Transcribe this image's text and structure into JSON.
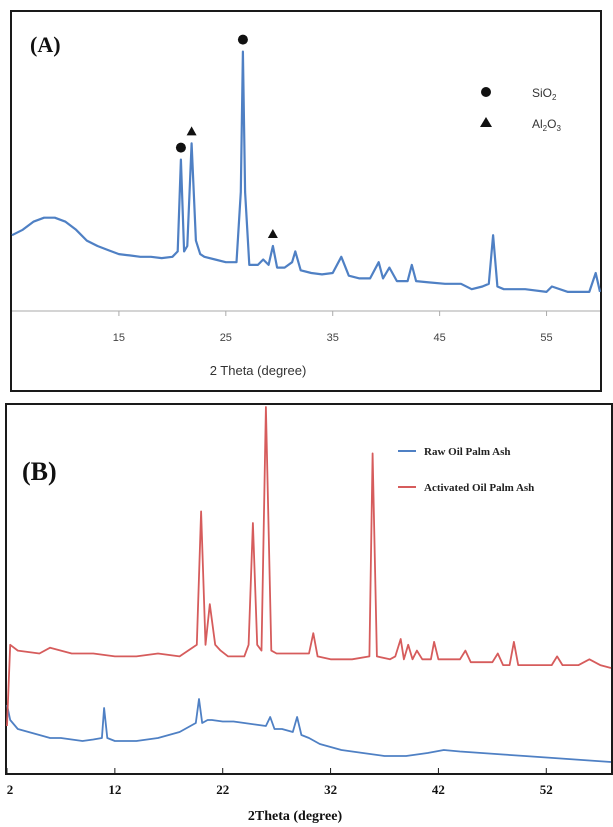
{
  "panels": [
    {
      "panel_label": "(A)",
      "xlabel": "2 Theta (degree)",
      "ylabel": "",
      "legend": [
        {
          "marker": "circle",
          "text": "SiO",
          "sub": "2",
          "text2": "",
          "sub2": ""
        },
        {
          "marker": "triangle",
          "text": "Al",
          "sub": "2",
          "text2": "O",
          "sub2": "3"
        }
      ],
      "peak_markers": [
        {
          "type": "circle",
          "x": 20.8
        },
        {
          "type": "triangle",
          "x": 21.8
        },
        {
          "type": "circle",
          "x": 26.6
        },
        {
          "type": "triangle",
          "x": 29.4
        }
      ]
    },
    {
      "panel_label": "(B)",
      "xlabel": "2Theta (degree)",
      "ylabel": "",
      "legend": [
        {
          "text": "Raw Oil Palm Ash"
        },
        {
          "text": "Activated Oil Palm Ash"
        }
      ]
    }
  ],
  "colors": {
    "blue": "#4f80c4",
    "red": "#d65c5c",
    "frame": "#1a1a1a",
    "axis_text": "#444444"
  },
  "chart_data": [
    {
      "type": "line",
      "title": "",
      "xlabel": "2 Theta (degree)",
      "ylabel": "",
      "xlim": [
        5,
        60
      ],
      "ylim": [
        0,
        100
      ],
      "xticks": [
        15,
        25,
        35,
        45,
        55
      ],
      "grid": false,
      "legend_position": "top-right",
      "series": [
        {
          "name": "",
          "x": [
            5,
            6,
            7,
            8,
            9,
            10,
            11,
            12,
            13,
            14,
            15,
            16,
            17,
            18,
            19,
            20,
            20.5,
            20.8,
            21.1,
            21.4,
            21.8,
            22.2,
            22.6,
            23,
            24,
            25,
            26,
            26.4,
            26.6,
            26.8,
            27.2,
            28,
            28.5,
            29,
            29.4,
            29.8,
            30.5,
            31.2,
            31.5,
            32,
            33,
            34,
            35,
            35.8,
            36.5,
            37.5,
            38.5,
            39.3,
            39.7,
            40.3,
            41,
            42,
            42.4,
            42.8,
            44,
            45.5,
            47,
            48,
            49,
            49.6,
            50,
            50.4,
            51,
            53,
            55,
            55.5,
            57,
            59,
            59.6,
            60
          ],
          "values": [
            24,
            26,
            29,
            30.5,
            30.5,
            29,
            26,
            22,
            20,
            18.5,
            17,
            16.5,
            16,
            16,
            15.5,
            16,
            18,
            52,
            18,
            20,
            58,
            22,
            17,
            16,
            15,
            14,
            14,
            40,
            92,
            40,
            13,
            13,
            15,
            13,
            20,
            12,
            12,
            14,
            18,
            11,
            10,
            9.5,
            10,
            16,
            9,
            8,
            8,
            14,
            8,
            12,
            7,
            7,
            13,
            7,
            6.5,
            6,
            6,
            4,
            5,
            6,
            24,
            5,
            4,
            4,
            3,
            5,
            3,
            3,
            10,
            3
          ]
        }
      ]
    },
    {
      "type": "line",
      "title": "",
      "xlabel": "2Theta (degree)",
      "ylabel": "",
      "xlim": [
        2,
        58
      ],
      "ylim": [
        0,
        100
      ],
      "xticks": [
        2,
        12,
        22,
        32,
        42,
        52
      ],
      "grid": false,
      "legend_position": "top-right",
      "series": [
        {
          "name": "Raw Oil Palm Ash",
          "x": [
            2,
            2.3,
            3,
            4,
            5,
            6,
            7,
            8,
            9,
            10,
            10.8,
            11,
            11.3,
            12,
            14,
            16,
            18,
            19,
            19.5,
            19.8,
            20.1,
            20.6,
            21,
            22,
            23,
            24,
            25,
            26,
            26.4,
            26.8,
            27.5,
            28.5,
            28.9,
            29.3,
            30,
            31,
            33,
            35,
            37,
            39,
            41,
            42.5,
            44,
            46,
            48,
            50,
            52,
            54,
            56,
            58
          ],
          "values": [
            20,
            15,
            12,
            11,
            10,
            9,
            9,
            8.5,
            8,
            8.5,
            9,
            19,
            9,
            8,
            8,
            9,
            11,
            13,
            14,
            22,
            14,
            15,
            15,
            14.5,
            14.5,
            14,
            13.5,
            13,
            16,
            12,
            12,
            11,
            16,
            10,
            9,
            7,
            5,
            4,
            3,
            3,
            4,
            5,
            4.5,
            4,
            3.5,
            3,
            2.5,
            2,
            1.5,
            1
          ]
        },
        {
          "name": "Activated Oil Palm Ash",
          "x": [
            2,
            2.3,
            3,
            5,
            6,
            8,
            10,
            12,
            14,
            16,
            18,
            19.6,
            20,
            20.4,
            20.8,
            21.3,
            21.8,
            22.5,
            24,
            24.4,
            24.8,
            25.2,
            25.6,
            26,
            26.5,
            27,
            28,
            29,
            30,
            30.4,
            30.8,
            32,
            34,
            35.6,
            35.9,
            36.3,
            37.5,
            38,
            38.5,
            38.8,
            39.2,
            39.6,
            40,
            40.5,
            41.3,
            41.6,
            42,
            44,
            44.5,
            45,
            47,
            47.5,
            48,
            48.6,
            49,
            49.4,
            51,
            52.5,
            53,
            53.5,
            55,
            56,
            57,
            58
          ],
          "values": [
            45,
            59,
            58,
            57.5,
            58.5,
            57.5,
            57.5,
            57,
            57,
            57.5,
            57,
            59,
            82,
            59,
            66,
            59,
            58,
            57,
            57,
            59,
            80,
            59,
            58,
            100,
            58,
            57.5,
            57.5,
            57.5,
            57.5,
            61,
            57,
            56.5,
            56.5,
            57,
            92,
            57,
            56.5,
            57,
            60,
            56.5,
            59,
            56.5,
            58,
            56.5,
            56.5,
            59.5,
            56.5,
            56.5,
            58,
            56,
            56,
            57.5,
            55.5,
            55.5,
            59.5,
            55.5,
            55.5,
            55.5,
            57,
            55.5,
            55.5,
            56.5,
            55.5,
            55
          ]
        }
      ]
    }
  ]
}
